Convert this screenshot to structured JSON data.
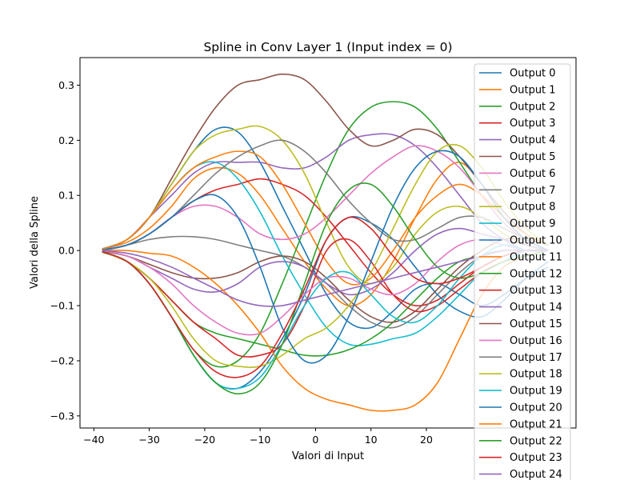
{
  "chart_data": {
    "type": "line",
    "title": "Spline in Conv Layer 1 (Input index = 0)",
    "xlabel": "Valori di Input",
    "ylabel": "Valori della Spline",
    "xlim": [
      -42.5,
      47
    ],
    "ylim": [
      -0.322,
      0.35
    ],
    "xticks": [
      -40,
      -30,
      -20,
      -10,
      0,
      10,
      20
    ],
    "yticks": [
      -0.3,
      -0.2,
      -0.1,
      0.0,
      0.1,
      0.2,
      0.3
    ],
    "ytick_labels": [
      "−0.3",
      "−0.2",
      "−0.1",
      "0.0",
      "0.1",
      "0.2",
      "0.3"
    ],
    "xtick_labels": [
      "−40",
      "−30",
      "−20",
      "−10",
      "0",
      "10",
      "20"
    ],
    "grid": false,
    "legend_position": "top-right",
    "x": [
      -38.5,
      -34,
      -30,
      -26,
      -22,
      -18,
      -14,
      -10,
      -6,
      -2,
      2,
      6,
      10,
      14,
      18,
      22,
      26,
      30,
      34,
      38,
      42
    ],
    "series": [
      {
        "name": "Output 0",
        "color": "#1f77b4",
        "values": [
          0.003,
          0.02,
          0.06,
          0.12,
          0.18,
          0.22,
          0.215,
          0.16,
          0.08,
          0.0,
          -0.08,
          -0.13,
          -0.14,
          -0.11,
          -0.07,
          -0.06,
          -0.08,
          -0.1,
          -0.08,
          -0.05,
          -0.03
        ]
      },
      {
        "name": "Output 1",
        "color": "#ff7f0e",
        "values": [
          0.003,
          0.015,
          0.04,
          0.08,
          0.13,
          0.15,
          0.14,
          0.1,
          0.04,
          -0.02,
          -0.07,
          -0.1,
          -0.08,
          -0.02,
          0.06,
          0.13,
          0.16,
          0.12,
          0.06,
          0.02,
          0.0
        ]
      },
      {
        "name": "Output 2",
        "color": "#2ca02c",
        "values": [
          -0.003,
          -0.02,
          -0.06,
          -0.12,
          -0.18,
          -0.21,
          -0.2,
          -0.15,
          -0.06,
          0.04,
          0.14,
          0.22,
          0.26,
          0.27,
          0.26,
          0.22,
          0.16,
          0.1,
          0.05,
          0.02,
          0.0
        ]
      },
      {
        "name": "Output 3",
        "color": "#d62728",
        "values": [
          0.0,
          0.01,
          0.03,
          0.06,
          0.09,
          0.11,
          0.12,
          0.13,
          0.12,
          0.1,
          0.06,
          0.01,
          -0.04,
          -0.08,
          -0.1,
          -0.09,
          -0.06,
          -0.03,
          -0.01,
          0.0,
          0.0
        ]
      },
      {
        "name": "Output 4",
        "color": "#9467bd",
        "values": [
          0.0,
          0.02,
          0.06,
          0.1,
          0.14,
          0.16,
          0.16,
          0.16,
          0.15,
          0.15,
          0.17,
          0.2,
          0.21,
          0.21,
          0.19,
          0.15,
          0.1,
          0.05,
          0.02,
          0.0,
          0.0
        ]
      },
      {
        "name": "Output 5",
        "color": "#8c564b",
        "values": [
          0.002,
          0.02,
          0.06,
          0.13,
          0.2,
          0.26,
          0.3,
          0.31,
          0.32,
          0.31,
          0.27,
          0.22,
          0.19,
          0.2,
          0.22,
          0.21,
          0.17,
          0.12,
          0.07,
          0.03,
          0.01
        ]
      },
      {
        "name": "Output 6",
        "color": "#e377c2",
        "values": [
          0.0,
          0.01,
          0.03,
          0.06,
          0.08,
          0.08,
          0.06,
          0.03,
          0.02,
          0.03,
          0.06,
          0.1,
          0.14,
          0.17,
          0.19,
          0.18,
          0.15,
          0.1,
          0.05,
          0.02,
          0.0
        ]
      },
      {
        "name": "Output 7",
        "color": "#7f7f7f",
        "values": [
          0.0,
          0.01,
          0.02,
          0.025,
          0.025,
          0.02,
          0.01,
          0.0,
          -0.01,
          -0.03,
          -0.06,
          -0.1,
          -0.13,
          -0.14,
          -0.12,
          -0.08,
          -0.04,
          -0.01,
          0.0,
          0.0,
          0.0
        ]
      },
      {
        "name": "Output 8",
        "color": "#bcbd22",
        "values": [
          0.002,
          0.02,
          0.06,
          0.12,
          0.18,
          0.21,
          0.22,
          0.225,
          0.2,
          0.14,
          0.05,
          -0.03,
          -0.06,
          -0.03,
          0.03,
          0.07,
          0.08,
          0.06,
          0.03,
          0.01,
          0.0
        ]
      },
      {
        "name": "Output 9",
        "color": "#17becf",
        "values": [
          0.002,
          0.02,
          0.06,
          0.11,
          0.15,
          0.16,
          0.13,
          0.07,
          -0.01,
          -0.08,
          -0.14,
          -0.17,
          -0.17,
          -0.16,
          -0.15,
          -0.12,
          -0.08,
          -0.04,
          -0.02,
          0.0,
          0.0
        ]
      },
      {
        "name": "Output 10",
        "color": "#1f77b4",
        "values": [
          -0.002,
          -0.02,
          -0.06,
          -0.12,
          -0.19,
          -0.24,
          -0.25,
          -0.22,
          -0.16,
          -0.08,
          0.02,
          0.06,
          0.05,
          0.02,
          -0.03,
          -0.08,
          -0.11,
          -0.12,
          -0.09,
          -0.05,
          -0.02
        ]
      },
      {
        "name": "Output 11",
        "color": "#ff7f0e",
        "values": [
          0.002,
          0.02,
          0.06,
          0.11,
          0.15,
          0.17,
          0.18,
          0.17,
          0.12,
          0.05,
          -0.02,
          -0.06,
          -0.05,
          0.0,
          0.06,
          0.1,
          0.12,
          0.1,
          0.06,
          0.03,
          0.01
        ]
      },
      {
        "name": "Output 12",
        "color": "#2ca02c",
        "values": [
          -0.002,
          -0.02,
          -0.05,
          -0.09,
          -0.13,
          -0.15,
          -0.16,
          -0.17,
          -0.18,
          -0.19,
          -0.19,
          -0.18,
          -0.16,
          -0.13,
          -0.09,
          -0.05,
          -0.02,
          -0.01,
          0.0,
          0.0,
          0.0
        ]
      },
      {
        "name": "Output 13",
        "color": "#d62728",
        "values": [
          -0.002,
          -0.02,
          -0.05,
          -0.09,
          -0.13,
          -0.16,
          -0.19,
          -0.19,
          -0.17,
          -0.1,
          0.0,
          0.02,
          -0.02,
          -0.08,
          -0.11,
          -0.1,
          -0.07,
          -0.04,
          -0.02,
          -0.01,
          0.0
        ]
      },
      {
        "name": "Output 14",
        "color": "#9467bd",
        "values": [
          -0.001,
          -0.01,
          -0.03,
          -0.05,
          -0.07,
          -0.075,
          -0.06,
          -0.03,
          -0.02,
          -0.03,
          -0.06,
          -0.08,
          -0.07,
          -0.04,
          0.0,
          0.03,
          0.04,
          0.03,
          0.02,
          0.01,
          0.0
        ]
      },
      {
        "name": "Output 15",
        "color": "#8c564b",
        "values": [
          -0.001,
          -0.01,
          -0.025,
          -0.04,
          -0.05,
          -0.05,
          -0.04,
          -0.02,
          -0.01,
          -0.02,
          -0.05,
          -0.09,
          -0.12,
          -0.13,
          -0.11,
          -0.07,
          -0.03,
          0.0,
          0.02,
          0.02,
          0.01
        ]
      },
      {
        "name": "Output 16",
        "color": "#e377c2",
        "values": [
          0.0,
          -0.01,
          -0.03,
          -0.06,
          -0.1,
          -0.13,
          -0.15,
          -0.15,
          -0.12,
          -0.08,
          -0.05,
          -0.05,
          -0.07,
          -0.08,
          -0.06,
          -0.02,
          0.01,
          0.02,
          0.01,
          0.0,
          0.0
        ]
      },
      {
        "name": "Output 17",
        "color": "#7f7f7f",
        "values": [
          0.0,
          0.01,
          0.03,
          0.06,
          0.1,
          0.14,
          0.17,
          0.19,
          0.2,
          0.18,
          0.14,
          0.09,
          0.05,
          0.02,
          0.02,
          0.04,
          0.06,
          0.06,
          0.04,
          0.02,
          0.0
        ]
      },
      {
        "name": "Output 18",
        "color": "#bcbd22",
        "values": [
          -0.002,
          -0.02,
          -0.05,
          -0.1,
          -0.16,
          -0.2,
          -0.21,
          -0.21,
          -0.19,
          -0.16,
          -0.14,
          -0.1,
          -0.04,
          0.04,
          0.12,
          0.18,
          0.19,
          0.15,
          0.09,
          0.04,
          0.01
        ]
      },
      {
        "name": "Output 19",
        "color": "#17becf",
        "values": [
          -0.002,
          -0.02,
          -0.06,
          -0.12,
          -0.19,
          -0.24,
          -0.25,
          -0.23,
          -0.17,
          -0.1,
          -0.05,
          -0.04,
          -0.08,
          -0.12,
          -0.13,
          -0.1,
          -0.05,
          -0.01,
          0.01,
          0.0,
          0.0
        ]
      },
      {
        "name": "Output 20",
        "color": "#1f77b4",
        "values": [
          0.001,
          0.01,
          0.03,
          0.06,
          0.09,
          0.1,
          0.06,
          -0.03,
          -0.14,
          -0.2,
          -0.19,
          -0.12,
          -0.02,
          0.08,
          0.15,
          0.18,
          0.17,
          0.12,
          0.06,
          0.02,
          0.0
        ]
      },
      {
        "name": "Output 21",
        "color": "#ff7f0e",
        "values": [
          0.0,
          0.0,
          -0.005,
          -0.01,
          -0.03,
          -0.06,
          -0.1,
          -0.15,
          -0.21,
          -0.25,
          -0.27,
          -0.28,
          -0.29,
          -0.29,
          -0.28,
          -0.24,
          -0.16,
          -0.08,
          -0.03,
          -0.01,
          0.0
        ]
      },
      {
        "name": "Output 22",
        "color": "#2ca02c",
        "values": [
          -0.002,
          -0.02,
          -0.06,
          -0.12,
          -0.19,
          -0.24,
          -0.26,
          -0.24,
          -0.17,
          -0.06,
          0.05,
          0.11,
          0.12,
          0.08,
          0.02,
          -0.03,
          -0.05,
          -0.04,
          -0.02,
          -0.01,
          0.0
        ]
      },
      {
        "name": "Output 23",
        "color": "#d62728",
        "values": [
          -0.002,
          -0.02,
          -0.06,
          -0.12,
          -0.18,
          -0.22,
          -0.23,
          -0.21,
          -0.15,
          -0.07,
          0.02,
          0.06,
          0.04,
          -0.01,
          -0.05,
          -0.06,
          -0.05,
          -0.03,
          -0.01,
          0.0,
          0.0
        ]
      },
      {
        "name": "Output 24",
        "color": "#9467bd",
        "values": [
          0.0,
          -0.005,
          -0.015,
          -0.03,
          -0.05,
          -0.07,
          -0.09,
          -0.1,
          -0.1,
          -0.09,
          -0.08,
          -0.07,
          -0.06,
          -0.05,
          -0.04,
          -0.03,
          -0.02,
          -0.01,
          0.0,
          0.0,
          0.0
        ]
      }
    ]
  }
}
